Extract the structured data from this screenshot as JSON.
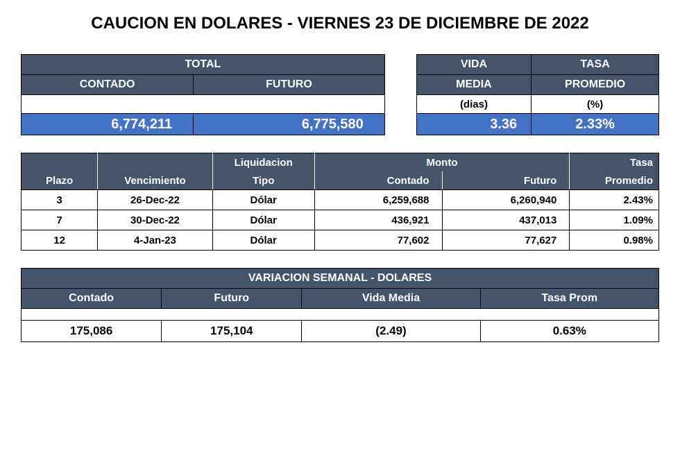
{
  "title": "CAUCION EN DOLARES - VIERNES 23 DE DICIEMBRE DE 2022",
  "colors": {
    "header_bg": "#44546a",
    "header_fg": "#ffffff",
    "value_bg": "#4472c4",
    "value_fg": "#ffffff",
    "border": "#000000",
    "page_bg": "#ffffff"
  },
  "summary": {
    "headers": {
      "total": "TOTAL",
      "contado": "CONTADO",
      "futuro": "FUTURO",
      "vida": "VIDA",
      "media": "MEDIA",
      "tasa": "TASA",
      "promedio": "PROMEDIO",
      "dias": "(dias)",
      "pct": "(%)"
    },
    "values": {
      "contado": "6,774,211",
      "futuro": "6,775,580",
      "vida_media": "3.36",
      "tasa_promedio": "2.33%"
    }
  },
  "detail": {
    "headers": {
      "plazo": "Plazo",
      "vencimiento": "Vencimiento",
      "liquidacion": "Liquidacion",
      "tipo": "Tipo",
      "monto": "Monto",
      "contado": "Contado",
      "futuro": "Futuro",
      "tasa": "Tasa",
      "promedio": "Promedio"
    },
    "rows": [
      {
        "plazo": "3",
        "venc": "26-Dec-22",
        "tipo": "Dólar",
        "contado": "6,259,688",
        "futuro": "6,260,940",
        "tasa": "2.43%"
      },
      {
        "plazo": "7",
        "venc": "30-Dec-22",
        "tipo": "Dólar",
        "contado": "436,921",
        "futuro": "437,013",
        "tasa": "1.09%"
      },
      {
        "plazo": "12",
        "venc": "4-Jan-23",
        "tipo": "Dólar",
        "contado": "77,602",
        "futuro": "77,627",
        "tasa": "0.98%"
      }
    ]
  },
  "weekly": {
    "title": "VARIACION SEMANAL - DOLARES",
    "headers": {
      "contado": "Contado",
      "futuro": "Futuro",
      "vida_media": "Vida Media",
      "tasa_prom": "Tasa Prom"
    },
    "values": {
      "contado": "175,086",
      "futuro": "175,104",
      "vida_media": "(2.49)",
      "tasa_prom": "0.63%"
    }
  }
}
